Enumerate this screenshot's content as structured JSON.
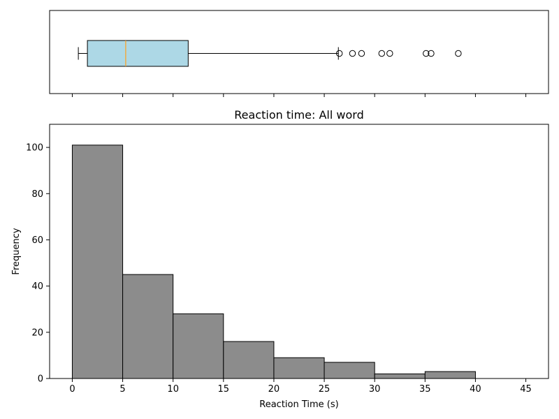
{
  "chart_data": [
    {
      "type": "box",
      "orientation": "horizontal",
      "x_range": [
        -2.25,
        47.25
      ],
      "whisker_low": 0.6,
      "q1": 1.5,
      "median": 5.3,
      "q3": 11.5,
      "whisker_high": 26.4,
      "outliers": [
        26.5,
        27.8,
        28.7,
        30.7,
        31.5,
        35.1,
        35.6,
        38.3
      ],
      "colors": {
        "box_fill": "#add8e6",
        "median": "#ff9f1c",
        "edge": "#000000"
      },
      "grid": false
    },
    {
      "type": "bar",
      "subtype": "histogram",
      "title": "Reaction time: All word",
      "xlabel": "Reaction Time (s)",
      "ylabel": "Frequency",
      "bins": [
        [
          0,
          5
        ],
        [
          5,
          10
        ],
        [
          10,
          15
        ],
        [
          15,
          20
        ],
        [
          20,
          25
        ],
        [
          25,
          30
        ],
        [
          30,
          35
        ],
        [
          35,
          40
        ],
        [
          40,
          45
        ]
      ],
      "values": [
        101,
        45,
        28,
        16,
        9,
        7,
        2,
        3,
        0
      ],
      "xlim": [
        -2.25,
        47.25
      ],
      "ylim": [
        0,
        110
      ],
      "xticks": [
        "0",
        "5",
        "10",
        "15",
        "20",
        "25",
        "30",
        "35",
        "40",
        "45"
      ],
      "yticks": [
        "0",
        "20",
        "40",
        "60",
        "80",
        "100"
      ],
      "colors": {
        "bar_fill": "#8c8c8c",
        "bar_edge": "#000000"
      },
      "grid": false
    }
  ]
}
